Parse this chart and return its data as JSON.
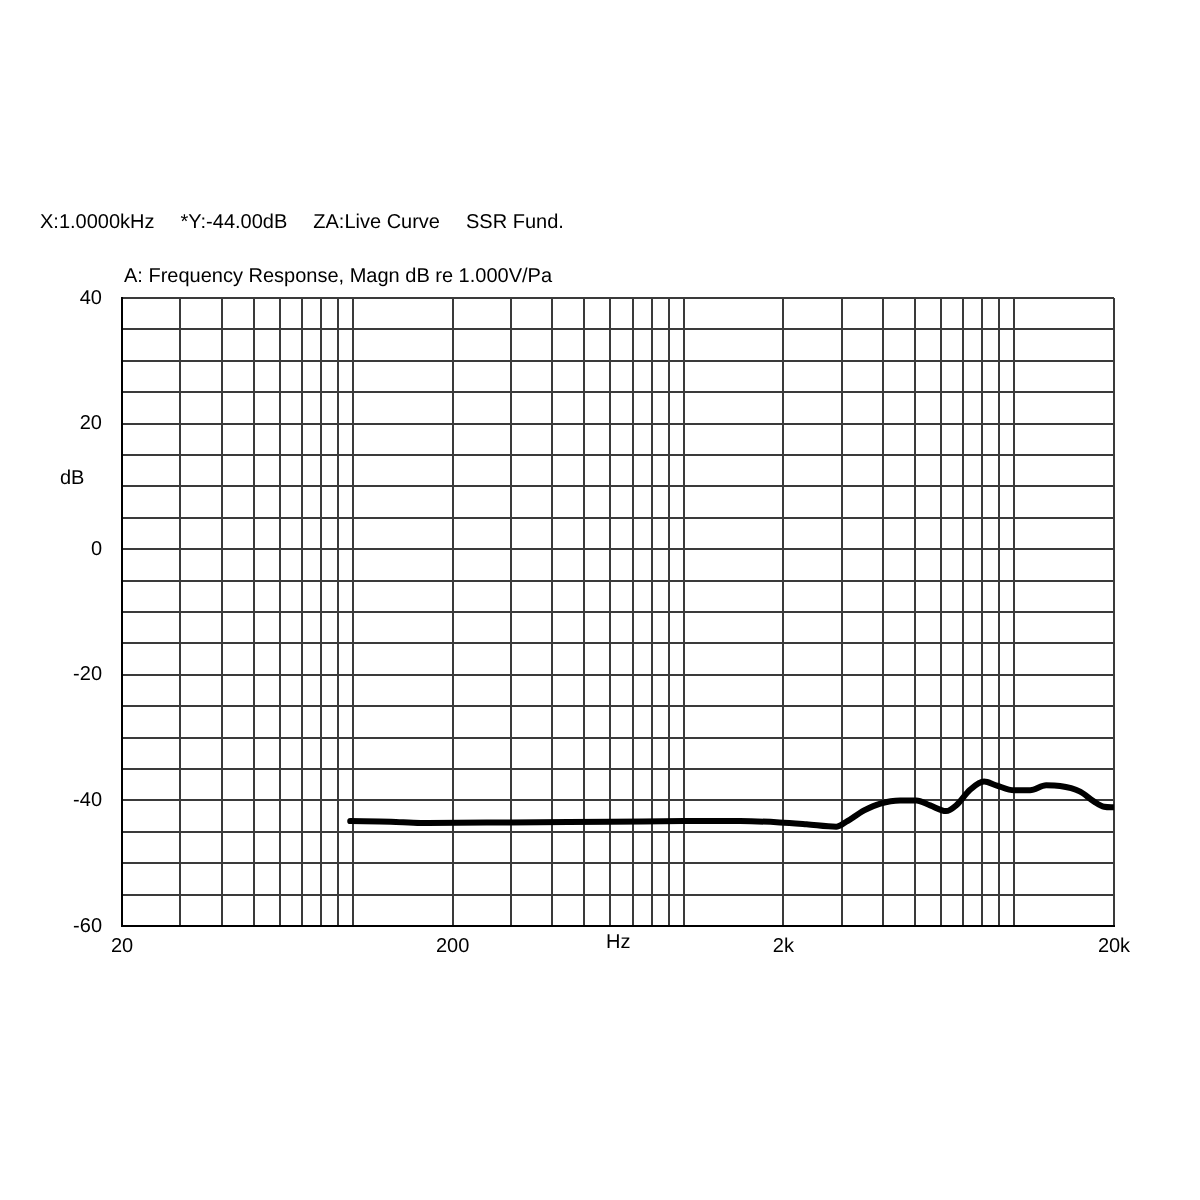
{
  "chart_data": {
    "type": "line",
    "title": "A: Frequency Response, Magn dB re 1.000V/Pa",
    "annotations": [
      "X:1.0000kHz",
      "*Y:-44.00dB",
      "ZA:Live Curve",
      "SSR Fund."
    ],
    "xlabel": "Hz",
    "ylabel": "dB",
    "log": "x",
    "grid": true,
    "marker": "none",
    "xlim": [
      20,
      20000
    ],
    "xticks": [
      20,
      {
        "value": 30,
        "label": null
      },
      {
        "value": 40,
        "label": null
      },
      {
        "value": 50,
        "label": null
      },
      {
        "value": 60,
        "label": null
      },
      {
        "value": 70,
        "label": null
      },
      {
        "value": 80,
        "label": null
      },
      {
        "value": 90,
        "label": null
      },
      {
        "value": 100,
        "label": null
      },
      200,
      {
        "value": 300,
        "label": null
      },
      {
        "value": 400,
        "label": null
      },
      {
        "value": 500,
        "label": null
      },
      {
        "value": 600,
        "label": null
      },
      {
        "value": 700,
        "label": null
      },
      {
        "value": 800,
        "label": null
      },
      {
        "value": 900,
        "label": null
      },
      {
        "value": 1000,
        "label": null
      },
      {
        "value": 2000,
        "label": "2k"
      },
      {
        "value": 3000,
        "label": null
      },
      {
        "value": 4000,
        "label": null
      },
      {
        "value": 5000,
        "label": null
      },
      {
        "value": 6000,
        "label": null
      },
      {
        "value": 7000,
        "label": null
      },
      {
        "value": 8000,
        "label": null
      },
      {
        "value": 9000,
        "label": null
      },
      {
        "value": 10000,
        "label": null
      },
      {
        "value": 20000,
        "label": "20k"
      }
    ],
    "ylim": [
      -60,
      40
    ],
    "yticks": [
      -60,
      {
        "value": -55,
        "label": null
      },
      {
        "value": -50,
        "label": null
      },
      {
        "value": -45,
        "label": null
      },
      -40,
      {
        "value": -35,
        "label": null
      },
      {
        "value": -30,
        "label": null
      },
      {
        "value": -25,
        "label": null
      },
      -20,
      {
        "value": -15,
        "label": null
      },
      {
        "value": -10,
        "label": null
      },
      {
        "value": -5,
        "label": null
      },
      0,
      {
        "value": 5,
        "label": null
      },
      {
        "value": 10,
        "label": null
      },
      {
        "value": 15,
        "label": null
      },
      20,
      {
        "value": 25,
        "label": null
      },
      {
        "value": 30,
        "label": null
      },
      {
        "value": 35,
        "label": null
      },
      40
    ],
    "color": "#000000",
    "x": [
      98,
      130,
      160,
      300,
      600,
      1000,
      1480,
      1950,
      2350,
      2890,
      3100,
      3510,
      3930,
      4510,
      5050,
      5560,
      6210,
      6660,
      7340,
      8090,
      8800,
      9980,
      11150,
      12470,
      13740,
      15800,
      17420,
      18670,
      20000
    ],
    "values": [
      -43.3,
      -43.4,
      -43.6,
      -43.5,
      -43.4,
      -43.3,
      -43.3,
      -43.5,
      -43.8,
      -44.2,
      -43.4,
      -41.6,
      -40.5,
      -40.0,
      -40.0,
      -40.8,
      -41.7,
      -40.8,
      -38.3,
      -37.0,
      -37.6,
      -38.4,
      -38.4,
      -37.6,
      -37.7,
      -38.6,
      -40.2,
      -41.0,
      -41.1
    ]
  }
}
